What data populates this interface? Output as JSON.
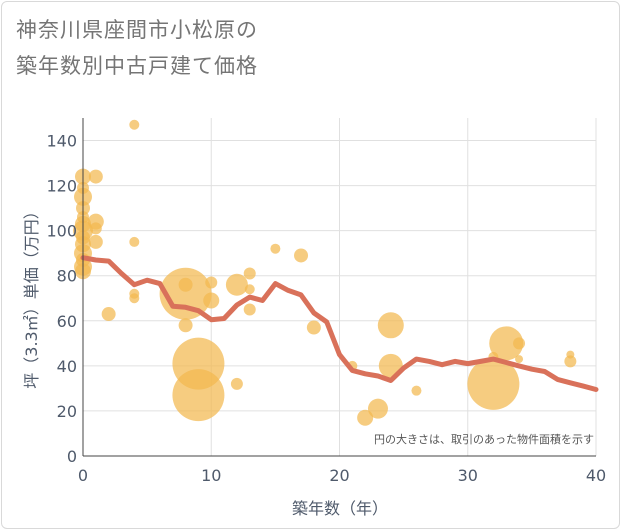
{
  "chart_data": {
    "type": "scatter",
    "title_line1": "神奈川県座間市小松原の",
    "title_line2": "築年数別中古戸建て価格",
    "xlabel": "築年数（年）",
    "ylabel": "坪（3.3㎡）単価（万円）",
    "note": "円の大きさは、取引のあった物件面積を示す",
    "xlim": [
      0,
      40
    ],
    "ylim": [
      0,
      150
    ],
    "x_ticks": [
      0,
      10,
      20,
      30,
      40
    ],
    "y_ticks": [
      0,
      20,
      40,
      60,
      80,
      100,
      120,
      140
    ],
    "colors": {
      "bubble": "#f3b84f",
      "line": "#d9715a",
      "grid": "#e0e0e0",
      "axis": "#444444"
    },
    "points": [
      {
        "x": 0,
        "y": 124,
        "s": 8
      },
      {
        "x": 0,
        "y": 119,
        "s": 6
      },
      {
        "x": 0,
        "y": 115,
        "s": 9
      },
      {
        "x": 0,
        "y": 110,
        "s": 7
      },
      {
        "x": 0,
        "y": 106,
        "s": 6
      },
      {
        "x": 0,
        "y": 103,
        "s": 8
      },
      {
        "x": 0,
        "y": 100,
        "s": 10
      },
      {
        "x": 0,
        "y": 97,
        "s": 7
      },
      {
        "x": 0,
        "y": 94,
        "s": 8
      },
      {
        "x": 0,
        "y": 90,
        "s": 9
      },
      {
        "x": 0,
        "y": 87,
        "s": 7
      },
      {
        "x": 0,
        "y": 84,
        "s": 9
      },
      {
        "x": 0,
        "y": 82,
        "s": 8
      },
      {
        "x": 1,
        "y": 124,
        "s": 7
      },
      {
        "x": 1,
        "y": 104,
        "s": 8
      },
      {
        "x": 1,
        "y": 101,
        "s": 6
      },
      {
        "x": 1,
        "y": 95,
        "s": 7
      },
      {
        "x": 2,
        "y": 63,
        "s": 7
      },
      {
        "x": 4,
        "y": 147,
        "s": 5
      },
      {
        "x": 4,
        "y": 95,
        "s": 5
      },
      {
        "x": 4,
        "y": 72,
        "s": 5
      },
      {
        "x": 4,
        "y": 70,
        "s": 5
      },
      {
        "x": 8,
        "y": 76,
        "s": 7
      },
      {
        "x": 8,
        "y": 72,
        "s": 26
      },
      {
        "x": 8,
        "y": 58,
        "s": 7
      },
      {
        "x": 9,
        "y": 41,
        "s": 26
      },
      {
        "x": 9,
        "y": 27,
        "s": 26
      },
      {
        "x": 10,
        "y": 77,
        "s": 6
      },
      {
        "x": 10,
        "y": 69,
        "s": 8
      },
      {
        "x": 12,
        "y": 76,
        "s": 11
      },
      {
        "x": 12,
        "y": 32,
        "s": 6
      },
      {
        "x": 13,
        "y": 81,
        "s": 6
      },
      {
        "x": 13,
        "y": 74,
        "s": 5
      },
      {
        "x": 13,
        "y": 65,
        "s": 6
      },
      {
        "x": 15,
        "y": 92,
        "s": 5
      },
      {
        "x": 17,
        "y": 89,
        "s": 7
      },
      {
        "x": 18,
        "y": 57,
        "s": 7
      },
      {
        "x": 21,
        "y": 40,
        "s": 5
      },
      {
        "x": 22,
        "y": 17,
        "s": 8
      },
      {
        "x": 23,
        "y": 21,
        "s": 10
      },
      {
        "x": 24,
        "y": 58,
        "s": 13
      },
      {
        "x": 24,
        "y": 40,
        "s": 12
      },
      {
        "x": 26,
        "y": 29,
        "s": 5
      },
      {
        "x": 32,
        "y": 44,
        "s": 5
      },
      {
        "x": 32,
        "y": 32,
        "s": 26
      },
      {
        "x": 33,
        "y": 50,
        "s": 17
      },
      {
        "x": 34,
        "y": 50,
        "s": 6
      },
      {
        "x": 34,
        "y": 43,
        "s": 4
      },
      {
        "x": 38,
        "y": 45,
        "s": 4
      },
      {
        "x": 38,
        "y": 42,
        "s": 6
      }
    ],
    "line": {
      "x": [
        0,
        1,
        2,
        3,
        4,
        5,
        6,
        7,
        8,
        9,
        10,
        11,
        12,
        13,
        14,
        15,
        16,
        17,
        18,
        19,
        20,
        21,
        22,
        23,
        24,
        25,
        26,
        27,
        28,
        29,
        30,
        31,
        32,
        33,
        34,
        35,
        36,
        37,
        38,
        39,
        40
      ],
      "y": [
        88,
        87,
        86.5,
        81,
        76,
        78,
        76.5,
        66.5,
        66,
        64.5,
        60.5,
        61,
        67,
        70.5,
        69,
        76.5,
        73.5,
        71.5,
        63.5,
        59.5,
        45,
        38,
        36.5,
        35.5,
        33.5,
        39,
        43,
        42,
        40.5,
        42,
        41,
        42,
        43,
        41.5,
        40,
        38.5,
        37.5,
        34,
        32.5,
        31,
        29.5
      ]
    }
  }
}
